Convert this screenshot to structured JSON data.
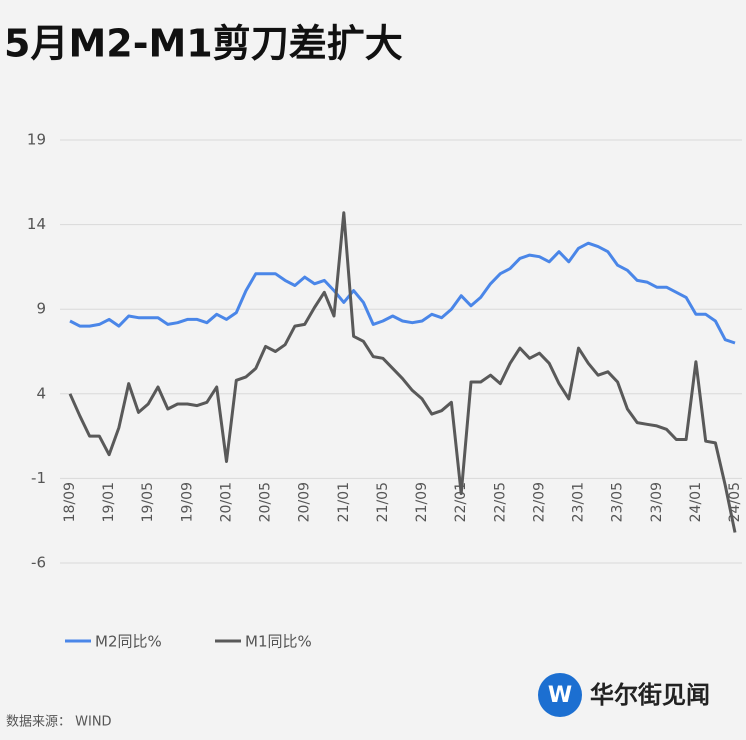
{
  "chart_data": {
    "type": "line",
    "title": "5月M2-M1剪刀差扩大",
    "categories": [
      "18/09",
      null,
      null,
      null,
      "19/01",
      null,
      null,
      null,
      "19/05",
      null,
      null,
      null,
      "19/09",
      null,
      null,
      null,
      "20/01",
      null,
      null,
      null,
      "20/05",
      null,
      null,
      null,
      "20/09",
      null,
      null,
      null,
      "21/01",
      null,
      null,
      null,
      "21/05",
      null,
      null,
      null,
      "21/09",
      null,
      null,
      null,
      "22/01",
      null,
      null,
      null,
      "22/05",
      null,
      null,
      null,
      "22/09",
      null,
      null,
      null,
      "23/01",
      null,
      null,
      null,
      "23/05",
      null,
      null,
      null,
      "23/09",
      null,
      null,
      null,
      "24/01",
      null,
      null,
      null,
      "24/05"
    ],
    "series": [
      {
        "name": "M2同比%",
        "color": "#4a86e8",
        "values": [
          8.3,
          8.0,
          8.0,
          8.1,
          8.4,
          8.0,
          8.6,
          8.5,
          8.5,
          8.5,
          8.1,
          8.2,
          8.4,
          8.4,
          8.2,
          8.7,
          8.4,
          8.8,
          10.1,
          11.1,
          11.1,
          11.1,
          10.7,
          10.4,
          10.9,
          10.5,
          10.7,
          10.1,
          9.4,
          10.1,
          9.4,
          8.1,
          8.3,
          8.6,
          8.3,
          8.2,
          8.3,
          8.7,
          8.5,
          9.0,
          9.8,
          9.2,
          9.7,
          10.5,
          11.1,
          11.4,
          12.0,
          12.2,
          12.1,
          11.8,
          12.4,
          11.8,
          12.6,
          12.9,
          12.7,
          12.4,
          11.6,
          11.3,
          10.7,
          10.6,
          10.3,
          10.3,
          10.0,
          9.7,
          8.7,
          8.7,
          8.3,
          7.2,
          7.0
        ]
      },
      {
        "name": "M1同比%",
        "color": "#595959",
        "values": [
          4.0,
          2.7,
          1.5,
          1.5,
          0.4,
          2.0,
          4.6,
          2.9,
          3.4,
          4.4,
          3.1,
          3.4,
          3.4,
          3.3,
          3.5,
          4.4,
          0.0,
          4.8,
          5.0,
          5.5,
          6.8,
          6.5,
          6.9,
          8.0,
          8.1,
          9.1,
          10.0,
          8.6,
          14.7,
          7.4,
          7.1,
          6.2,
          6.1,
          5.5,
          4.9,
          4.2,
          3.7,
          2.8,
          3.0,
          3.5,
          -1.9,
          4.7,
          4.7,
          5.1,
          4.6,
          5.8,
          6.7,
          6.1,
          6.4,
          5.8,
          4.6,
          3.7,
          6.7,
          5.8,
          5.1,
          5.3,
          4.7,
          3.1,
          2.3,
          2.2,
          2.1,
          1.9,
          1.3,
          1.3,
          5.9,
          1.2,
          1.1,
          -1.4,
          -4.2
        ]
      }
    ],
    "ylim": [
      -6,
      19
    ],
    "yticks": [
      19,
      14,
      9,
      4,
      -1,
      -6
    ],
    "grid": true
  },
  "source": "数据来源： WIND",
  "logo": "华尔街见闻"
}
